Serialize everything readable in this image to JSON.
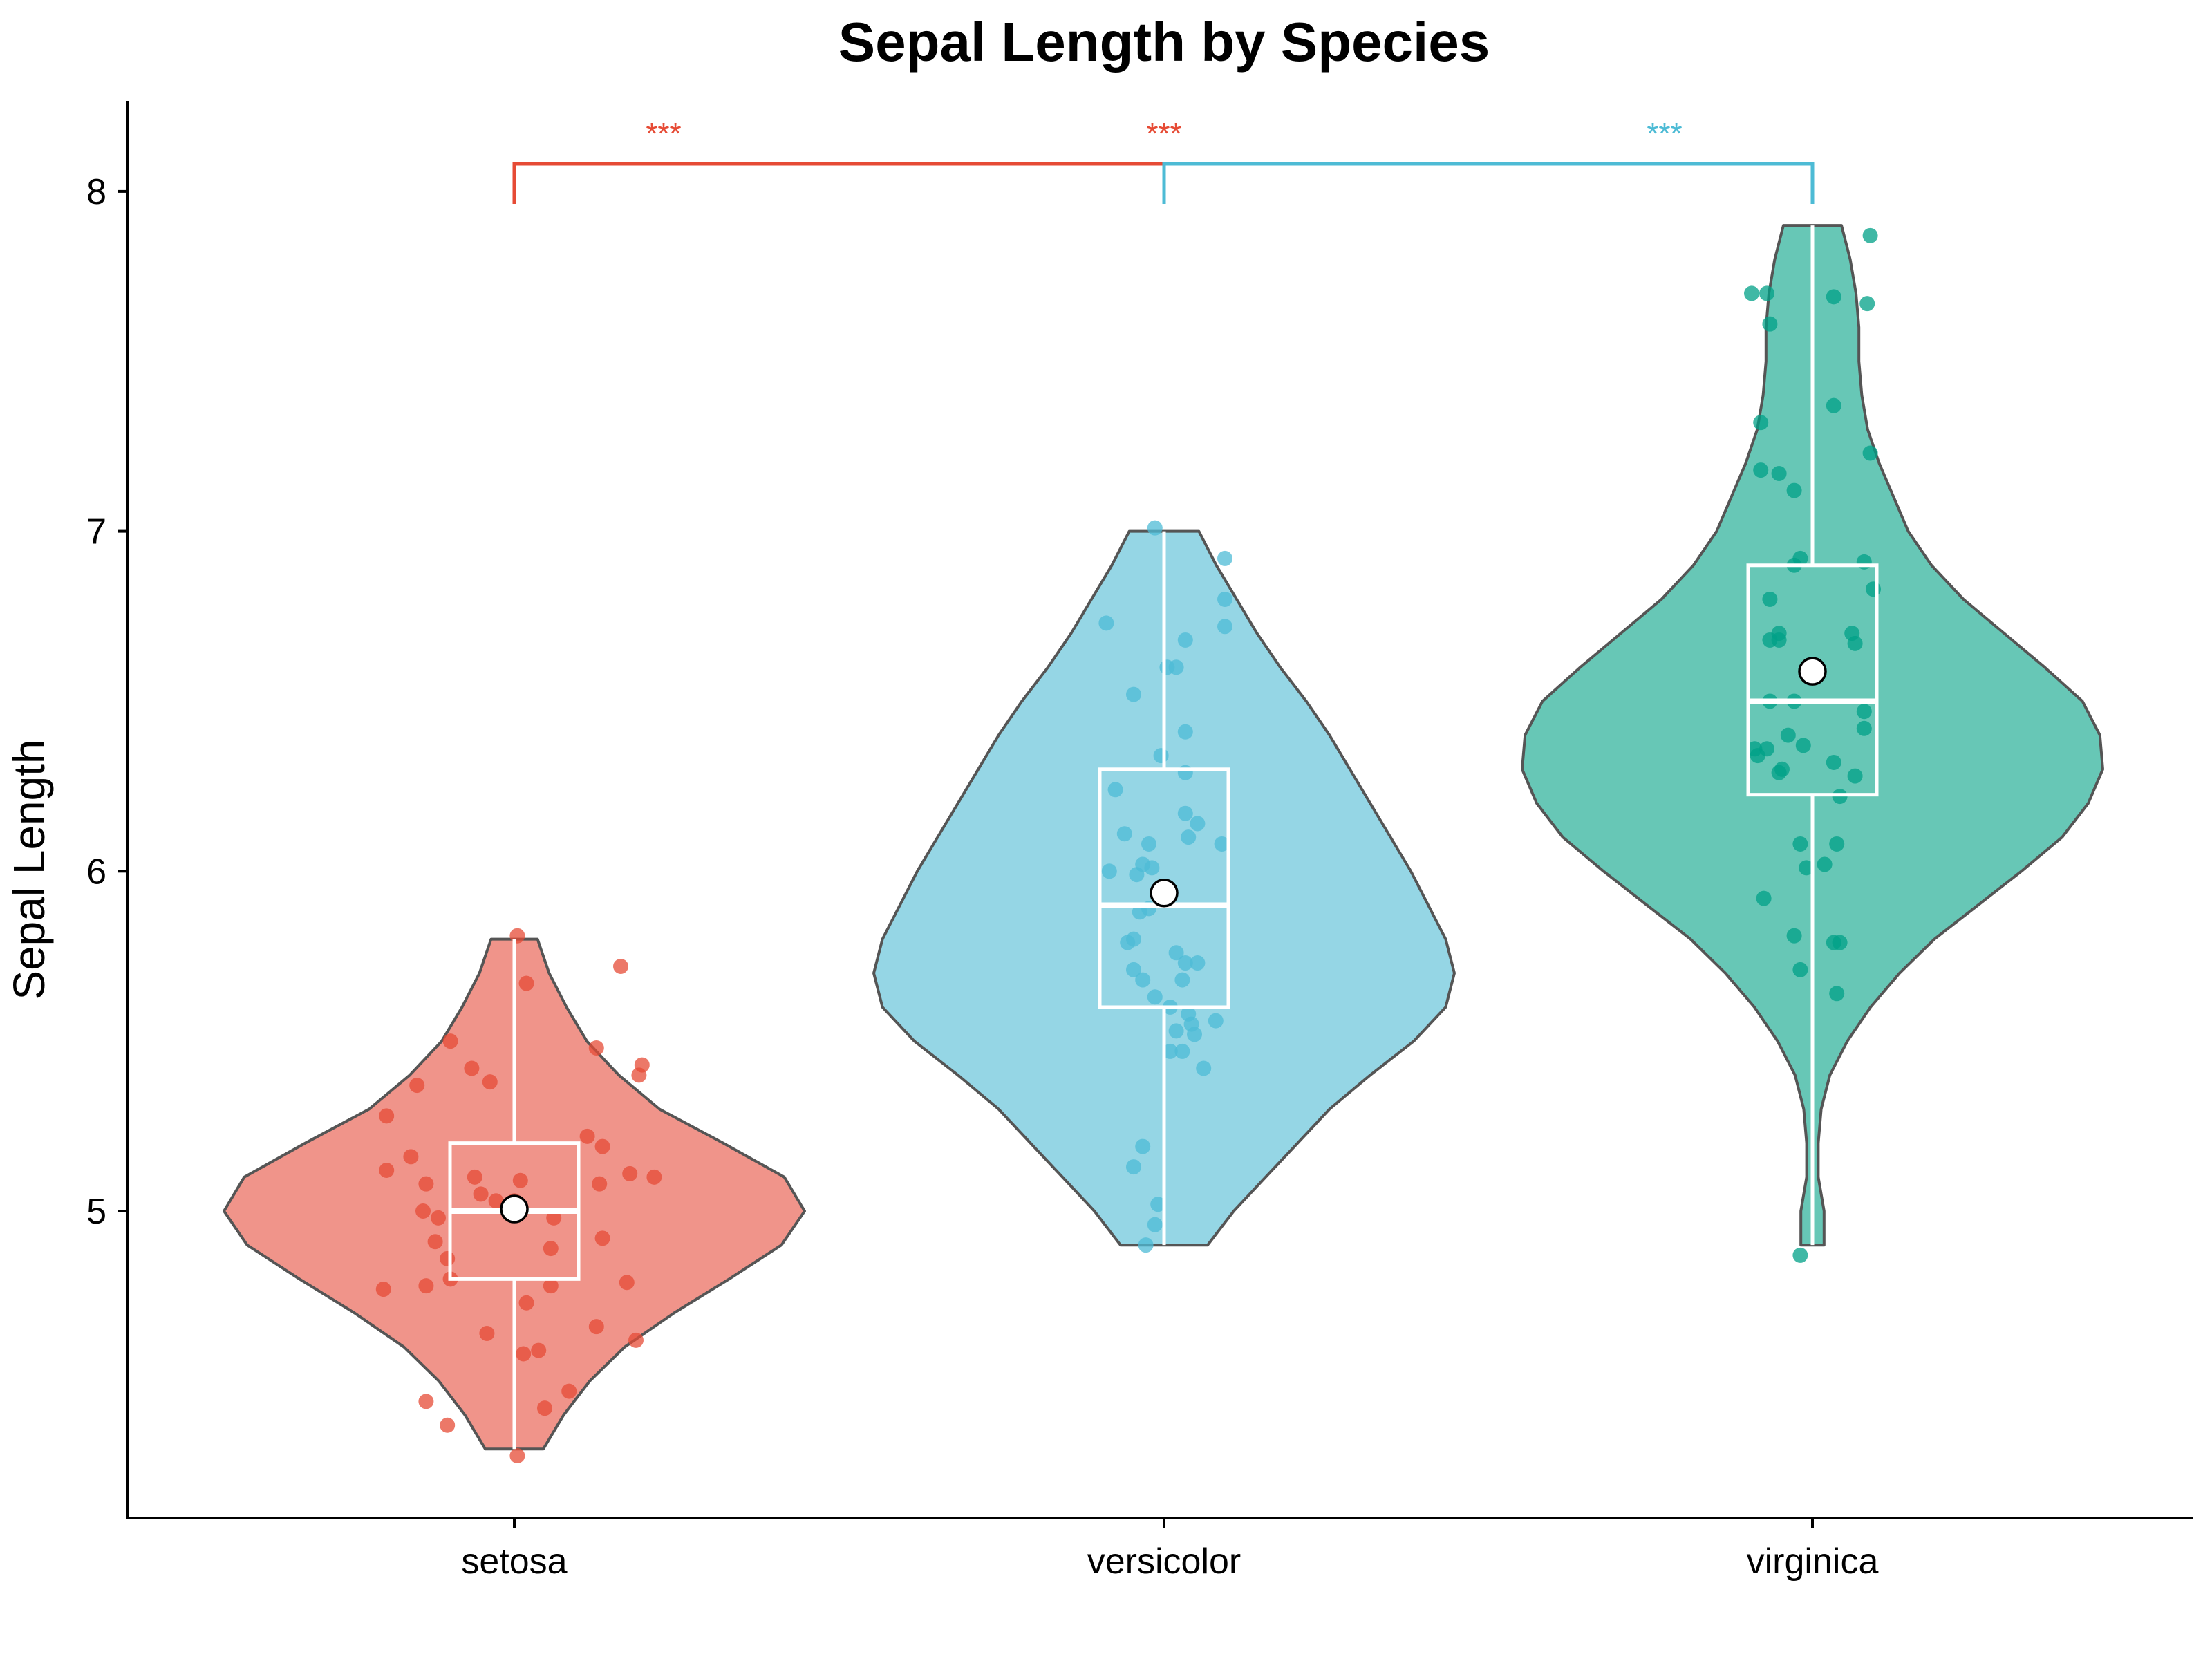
{
  "chart_data": {
    "type": "violin",
    "title": "Sepal Length by Species",
    "xlabel": "",
    "ylabel": "Sepal Length",
    "ylim": [
      4.2,
      8.3
    ],
    "yticks": [
      5,
      6,
      7,
      8
    ],
    "categories": [
      "setosa",
      "versicolor",
      "virginica"
    ],
    "grid": false,
    "groups": [
      {
        "name": "setosa",
        "color": "#E64B35",
        "fill": "#F0948A",
        "min": 4.3,
        "q1": 4.8,
        "median": 5.0,
        "q3": 5.2,
        "max": 5.8,
        "mean": 5.006,
        "density": [
          [
            4.3,
            0.1
          ],
          [
            4.4,
            0.17
          ],
          [
            4.5,
            0.26
          ],
          [
            4.6,
            0.38
          ],
          [
            4.7,
            0.55
          ],
          [
            4.8,
            0.74
          ],
          [
            4.9,
            0.92
          ],
          [
            5.0,
            1.0
          ],
          [
            5.1,
            0.93
          ],
          [
            5.2,
            0.72
          ],
          [
            5.3,
            0.5
          ],
          [
            5.4,
            0.36
          ],
          [
            5.5,
            0.25
          ],
          [
            5.6,
            0.18
          ],
          [
            5.7,
            0.12
          ],
          [
            5.8,
            0.08
          ]
        ],
        "points": [
          [
            0.01,
            5.81
          ],
          [
            0.04,
            5.67
          ],
          [
            0.35,
            5.72
          ],
          [
            -0.21,
            5.5
          ],
          [
            0.27,
            5.48
          ],
          [
            0.42,
            5.43
          ],
          [
            -0.14,
            5.42
          ],
          [
            0.41,
            5.4
          ],
          [
            -0.08,
            5.38
          ],
          [
            -0.32,
            5.37
          ],
          [
            -0.42,
            5.28
          ],
          [
            0.24,
            5.22
          ],
          [
            0.29,
            5.19
          ],
          [
            -0.34,
            5.16
          ],
          [
            -0.42,
            5.12
          ],
          [
            0.38,
            5.11
          ],
          [
            0.46,
            5.1
          ],
          [
            -0.13,
            5.1
          ],
          [
            0.02,
            5.09
          ],
          [
            0.28,
            5.08
          ],
          [
            -0.29,
            5.08
          ],
          [
            -0.11,
            5.05
          ],
          [
            -0.06,
            5.03
          ],
          [
            0.0,
            5.03
          ],
          [
            -0.3,
            5.0
          ],
          [
            -0.25,
            4.98
          ],
          [
            0.13,
            4.98
          ],
          [
            -0.26,
            4.91
          ],
          [
            0.12,
            4.89
          ],
          [
            0.29,
            4.92
          ],
          [
            -0.22,
            4.86
          ],
          [
            -0.21,
            4.8
          ],
          [
            -0.29,
            4.78
          ],
          [
            -0.43,
            4.77
          ],
          [
            0.12,
            4.78
          ],
          [
            0.37,
            4.79
          ],
          [
            0.04,
            4.73
          ],
          [
            0.27,
            4.66
          ],
          [
            -0.09,
            4.64
          ],
          [
            0.4,
            4.62
          ],
          [
            0.08,
            4.59
          ],
          [
            0.03,
            4.58
          ],
          [
            0.18,
            4.47
          ],
          [
            -0.29,
            4.44
          ],
          [
            0.1,
            4.42
          ],
          [
            -0.22,
            4.37
          ],
          [
            0.01,
            4.28
          ]
        ]
      },
      {
        "name": "versicolor",
        "color": "#4DBBD5",
        "fill": "#95D6E5",
        "min": 4.9,
        "q1": 5.6,
        "median": 5.9,
        "q3": 6.3,
        "max": 7.0,
        "mean": 5.936,
        "density": [
          [
            4.9,
            0.15
          ],
          [
            5.0,
            0.24
          ],
          [
            5.1,
            0.35
          ],
          [
            5.2,
            0.46
          ],
          [
            5.3,
            0.57
          ],
          [
            5.4,
            0.71
          ],
          [
            5.5,
            0.86
          ],
          [
            5.6,
            0.97
          ],
          [
            5.7,
            1.0
          ],
          [
            5.8,
            0.97
          ],
          [
            5.9,
            0.91
          ],
          [
            6.0,
            0.85
          ],
          [
            6.1,
            0.78
          ],
          [
            6.2,
            0.71
          ],
          [
            6.3,
            0.64
          ],
          [
            6.4,
            0.57
          ],
          [
            6.5,
            0.49
          ],
          [
            6.6,
            0.4
          ],
          [
            6.7,
            0.32
          ],
          [
            6.8,
            0.25
          ],
          [
            6.9,
            0.18
          ],
          [
            7.0,
            0.12
          ]
        ],
        "points": [
          [
            -0.03,
            7.01
          ],
          [
            0.2,
            6.92
          ],
          [
            0.2,
            6.8
          ],
          [
            -0.19,
            6.73
          ],
          [
            0.2,
            6.72
          ],
          [
            0.07,
            6.68
          ],
          [
            0.01,
            6.6
          ],
          [
            0.04,
            6.6
          ],
          [
            -0.1,
            6.52
          ],
          [
            0.07,
            6.41
          ],
          [
            -0.01,
            6.34
          ],
          [
            0.07,
            6.29
          ],
          [
            -0.16,
            6.24
          ],
          [
            0.07,
            6.17
          ],
          [
            0.11,
            6.14
          ],
          [
            -0.13,
            6.11
          ],
          [
            0.08,
            6.1
          ],
          [
            -0.05,
            6.08
          ],
          [
            0.19,
            6.08
          ],
          [
            -0.07,
            6.02
          ],
          [
            -0.04,
            6.01
          ],
          [
            -0.18,
            6.0
          ],
          [
            -0.09,
            5.99
          ],
          [
            -0.05,
            5.89
          ],
          [
            -0.08,
            5.88
          ],
          [
            -0.1,
            5.8
          ],
          [
            -0.12,
            5.79
          ],
          [
            0.04,
            5.76
          ],
          [
            0.07,
            5.73
          ],
          [
            0.11,
            5.73
          ],
          [
            -0.1,
            5.71
          ],
          [
            0.06,
            5.68
          ],
          [
            -0.07,
            5.68
          ],
          [
            -0.03,
            5.63
          ],
          [
            0.08,
            5.58
          ],
          [
            0.17,
            5.56
          ],
          [
            0.02,
            5.6
          ],
          [
            0.09,
            5.55
          ],
          [
            0.04,
            5.53
          ],
          [
            0.1,
            5.52
          ],
          [
            0.02,
            5.47
          ],
          [
            0.06,
            5.47
          ],
          [
            0.13,
            5.42
          ],
          [
            -0.07,
            5.19
          ],
          [
            -0.1,
            5.13
          ],
          [
            -0.02,
            5.02
          ],
          [
            -0.03,
            4.96
          ],
          [
            -0.06,
            4.9
          ]
        ]
      },
      {
        "name": "virginica",
        "color": "#00A087",
        "fill": "#67C7B6",
        "min": 4.9,
        "q1": 6.225,
        "median": 6.5,
        "q3": 6.9,
        "max": 7.9,
        "mean": 6.588,
        "density": [
          [
            4.9,
            0.04
          ],
          [
            5.0,
            0.04
          ],
          [
            5.1,
            0.02
          ],
          [
            5.2,
            0.02
          ],
          [
            5.3,
            0.03
          ],
          [
            5.4,
            0.06
          ],
          [
            5.5,
            0.12
          ],
          [
            5.6,
            0.2
          ],
          [
            5.7,
            0.3
          ],
          [
            5.8,
            0.42
          ],
          [
            5.9,
            0.57
          ],
          [
            6.0,
            0.72
          ],
          [
            6.1,
            0.86
          ],
          [
            6.2,
            0.95
          ],
          [
            6.3,
            1.0
          ],
          [
            6.4,
            0.99
          ],
          [
            6.5,
            0.93
          ],
          [
            6.6,
            0.8
          ],
          [
            6.7,
            0.66
          ],
          [
            6.8,
            0.52
          ],
          [
            6.9,
            0.41
          ],
          [
            7.0,
            0.33
          ],
          [
            7.1,
            0.28
          ],
          [
            7.2,
            0.23
          ],
          [
            7.3,
            0.19
          ],
          [
            7.4,
            0.17
          ],
          [
            7.5,
            0.16
          ],
          [
            7.6,
            0.16
          ],
          [
            7.7,
            0.15
          ],
          [
            7.8,
            0.13
          ],
          [
            7.9,
            0.1
          ]
        ],
        "points": [
          [
            0.19,
            7.87
          ],
          [
            -0.2,
            7.7
          ],
          [
            -0.15,
            7.7
          ],
          [
            0.07,
            7.69
          ],
          [
            0.18,
            7.67
          ],
          [
            -0.14,
            7.61
          ],
          [
            0.07,
            7.37
          ],
          [
            -0.17,
            7.32
          ],
          [
            0.19,
            7.23
          ],
          [
            -0.17,
            7.18
          ],
          [
            -0.11,
            7.17
          ],
          [
            -0.06,
            7.12
          ],
          [
            0.17,
            6.91
          ],
          [
            -0.04,
            6.92
          ],
          [
            -0.06,
            6.9
          ],
          [
            0.2,
            6.83
          ],
          [
            -0.14,
            6.8
          ],
          [
            -0.11,
            6.7
          ],
          [
            0.13,
            6.7
          ],
          [
            -0.14,
            6.68
          ],
          [
            -0.11,
            6.68
          ],
          [
            0.14,
            6.67
          ],
          [
            -0.06,
            6.5
          ],
          [
            0.17,
            6.47
          ],
          [
            -0.14,
            6.5
          ],
          [
            0.17,
            6.42
          ],
          [
            -0.08,
            6.4
          ],
          [
            -0.03,
            6.37
          ],
          [
            -0.19,
            6.36
          ],
          [
            -0.15,
            6.36
          ],
          [
            -0.18,
            6.34
          ],
          [
            0.07,
            6.32
          ],
          [
            0.14,
            6.28
          ],
          [
            -0.1,
            6.3
          ],
          [
            -0.11,
            6.29
          ],
          [
            0.09,
            6.22
          ],
          [
            0.08,
            6.08
          ],
          [
            -0.04,
            6.08
          ],
          [
            0.04,
            6.02
          ],
          [
            -0.02,
            6.01
          ],
          [
            -0.16,
            5.92
          ],
          [
            -0.06,
            5.81
          ],
          [
            0.07,
            5.79
          ],
          [
            0.09,
            5.79
          ],
          [
            -0.04,
            5.71
          ],
          [
            0.08,
            5.64
          ],
          [
            -0.04,
            4.87
          ]
        ]
      }
    ],
    "significance": [
      {
        "from": "setosa",
        "to": "versicolor",
        "label": "***",
        "color": "#E64B35",
        "ref": "setosa"
      },
      {
        "from": "versicolor",
        "to": "virginica",
        "label": "***",
        "color": "#4DBBD5",
        "ref": "versicolor"
      }
    ],
    "sig_labels": [
      {
        "at": "setosa-versicolor",
        "label": "***",
        "color": "#E64B35"
      },
      {
        "at": "versicolor",
        "label": "***",
        "color": "#E64B35"
      },
      {
        "at": "versicolor-virginica",
        "label": "***",
        "color": "#4DBBD5"
      }
    ]
  }
}
